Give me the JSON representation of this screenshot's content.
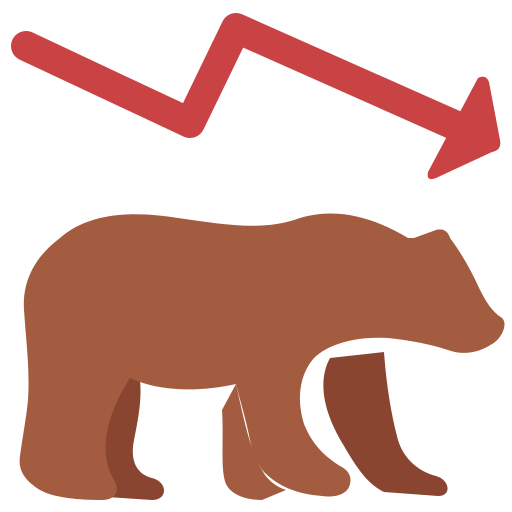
{
  "illustration": {
    "subject": "bear-market-icon",
    "colors": {
      "arrow": "#c94244",
      "bear_body": "#a35c3f",
      "bear_far_legs": "#8a4530",
      "background": "#ffffff"
    },
    "icons": [
      "downward-trend-arrow-icon",
      "bear-icon"
    ]
  }
}
